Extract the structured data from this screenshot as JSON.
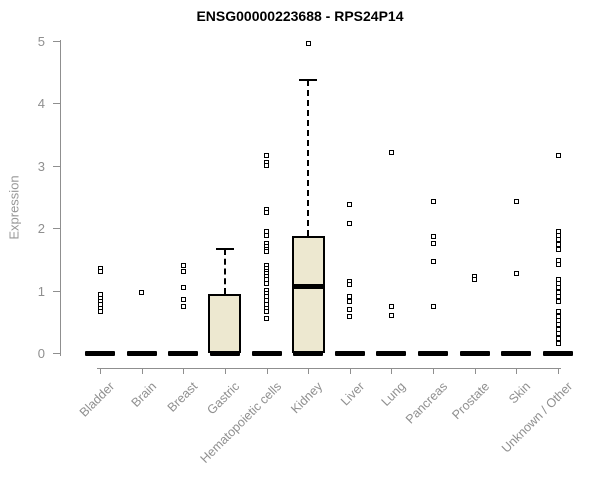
{
  "chart_data": {
    "type": "boxplot",
    "title": "ENSG00000223688 - RPS24P14",
    "ylabel": "Expression",
    "xlabel": "",
    "ylim": [
      0,
      5
    ],
    "yticks": [
      0,
      1,
      2,
      3,
      4,
      5
    ],
    "grid": false,
    "legend": false,
    "box_fill_color": "#ede8d0",
    "box_border_color": "#000000",
    "axis_color": "#8f8f8f",
    "title_color": "#000000",
    "categories": [
      "Bladder",
      "Brain",
      "Breast",
      "Gastric",
      "Hematopoietic cells",
      "Kidney",
      "Liver",
      "Lung",
      "Pancreas",
      "Prostate",
      "Skin",
      "Unknown / Other"
    ],
    "groups": [
      {
        "name": "Bladder",
        "zero_bar": true,
        "box": null,
        "points": [
          1.36,
          1.31,
          0.93,
          0.88,
          0.83,
          0.78,
          0.72,
          0.66
        ]
      },
      {
        "name": "Brain",
        "zero_bar": true,
        "box": null,
        "points": [
          0.97
        ]
      },
      {
        "name": "Breast",
        "zero_bar": true,
        "box": null,
        "points": [
          1.41,
          1.3,
          1.05,
          0.85,
          0.74
        ]
      },
      {
        "name": "Gastric",
        "zero_bar": true,
        "box": {
          "q1": 0,
          "median": 0,
          "q3": 0.95,
          "whisker_high": 1.66
        },
        "points": []
      },
      {
        "name": "Hematopoietic cells",
        "zero_bar": true,
        "box": null,
        "points": [
          3.17,
          3.05,
          3.01,
          2.3,
          2.25,
          1.95,
          1.88,
          1.76,
          1.71,
          1.66,
          1.62,
          1.4,
          1.36,
          1.31,
          1.27,
          1.22,
          1.17,
          1.12,
          1.0,
          0.95,
          0.9,
          0.84,
          0.78,
          0.72,
          0.66,
          0.56
        ]
      },
      {
        "name": "Kidney",
        "zero_bar": true,
        "box": {
          "q1": 0,
          "median": 1.07,
          "q3": 1.88,
          "whisker_high": 4.37
        },
        "points": [
          4.96
        ]
      },
      {
        "name": "Liver",
        "zero_bar": true,
        "box": null,
        "points": [
          2.38,
          2.08,
          1.14,
          1.09,
          0.9,
          0.82,
          0.69,
          0.59
        ]
      },
      {
        "name": "Lung",
        "zero_bar": true,
        "box": null,
        "points": [
          3.22,
          0.74,
          0.6
        ]
      },
      {
        "name": "Pancreas",
        "zero_bar": true,
        "box": null,
        "points": [
          2.43,
          1.86,
          1.76,
          1.47,
          0.75
        ]
      },
      {
        "name": "Prostate",
        "zero_bar": true,
        "box": null,
        "points": [
          1.22,
          1.18
        ]
      },
      {
        "name": "Skin",
        "zero_bar": true,
        "box": null,
        "points": [
          2.43,
          1.28
        ]
      },
      {
        "name": "Unknown / Other",
        "zero_bar": true,
        "box": null,
        "points": [
          3.17,
          1.95,
          1.89,
          1.82,
          1.74,
          1.66,
          1.49,
          1.42,
          1.18,
          1.12,
          1.05,
          0.97,
          0.9,
          0.83,
          0.66,
          0.59,
          0.52,
          0.45,
          0.38,
          0.31,
          0.24,
          0.16
        ]
      }
    ]
  }
}
